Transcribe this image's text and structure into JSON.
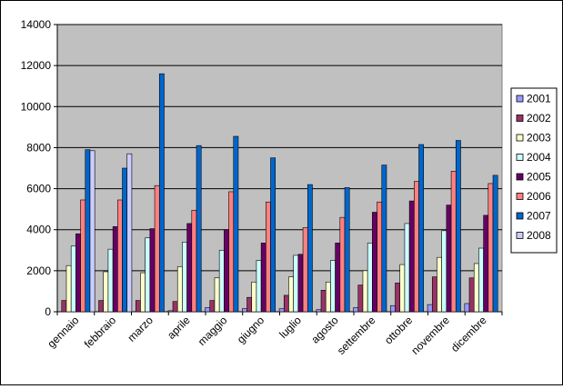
{
  "chart_data": {
    "type": "bar",
    "title": "",
    "xlabel": "",
    "ylabel": "",
    "ylim": [
      0,
      14000
    ],
    "yticks": [
      "0",
      "2000",
      "4000",
      "6000",
      "8000",
      "10000",
      "12000",
      "14000"
    ],
    "grid": true,
    "legend_position": "right",
    "plot_background": "#c0c0c0",
    "categories": [
      "gennaio",
      "febbraio",
      "marzo",
      "aprile",
      "maggio",
      "giugno",
      "luglio",
      "agosto",
      "settembre",
      "ottobre",
      "novembre",
      "dicembre"
    ],
    "series": [
      {
        "name": "2001",
        "color": "#9999ff",
        "values": [
          0,
          0,
          0,
          50,
          200,
          150,
          150,
          100,
          200,
          300,
          350,
          400
        ]
      },
      {
        "name": "2002",
        "color": "#993366",
        "values": [
          550,
          550,
          550,
          500,
          550,
          700,
          800,
          1050,
          1300,
          1400,
          1700,
          1650
        ]
      },
      {
        "name": "2003",
        "color": "#ffffcc",
        "values": [
          2250,
          1950,
          1900,
          2200,
          1650,
          1450,
          1700,
          1450,
          2000,
          2300,
          2650,
          2350
        ]
      },
      {
        "name": "2004",
        "color": "#ccffff",
        "values": [
          3200,
          3050,
          3600,
          3400,
          3000,
          2500,
          2750,
          2500,
          3350,
          4300,
          3950,
          3100
        ]
      },
      {
        "name": "2005",
        "color": "#660066",
        "values": [
          3800,
          4150,
          4050,
          4300,
          4000,
          3350,
          2800,
          3350,
          4850,
          5400,
          5200,
          4700
        ]
      },
      {
        "name": "2006",
        "color": "#ff8080",
        "values": [
          5450,
          5450,
          6150,
          4950,
          5850,
          5350,
          4100,
          4600,
          5350,
          6350,
          6850,
          6250
        ]
      },
      {
        "name": "2007",
        "color": "#0066cc",
        "values": [
          7900,
          7000,
          11600,
          8100,
          8550,
          7500,
          6200,
          6050,
          7150,
          8150,
          8350,
          6650
        ]
      },
      {
        "name": "2008",
        "color": "#ccccff",
        "values": [
          7850,
          7700,
          null,
          null,
          null,
          null,
          null,
          null,
          null,
          null,
          null,
          null
        ]
      }
    ]
  }
}
